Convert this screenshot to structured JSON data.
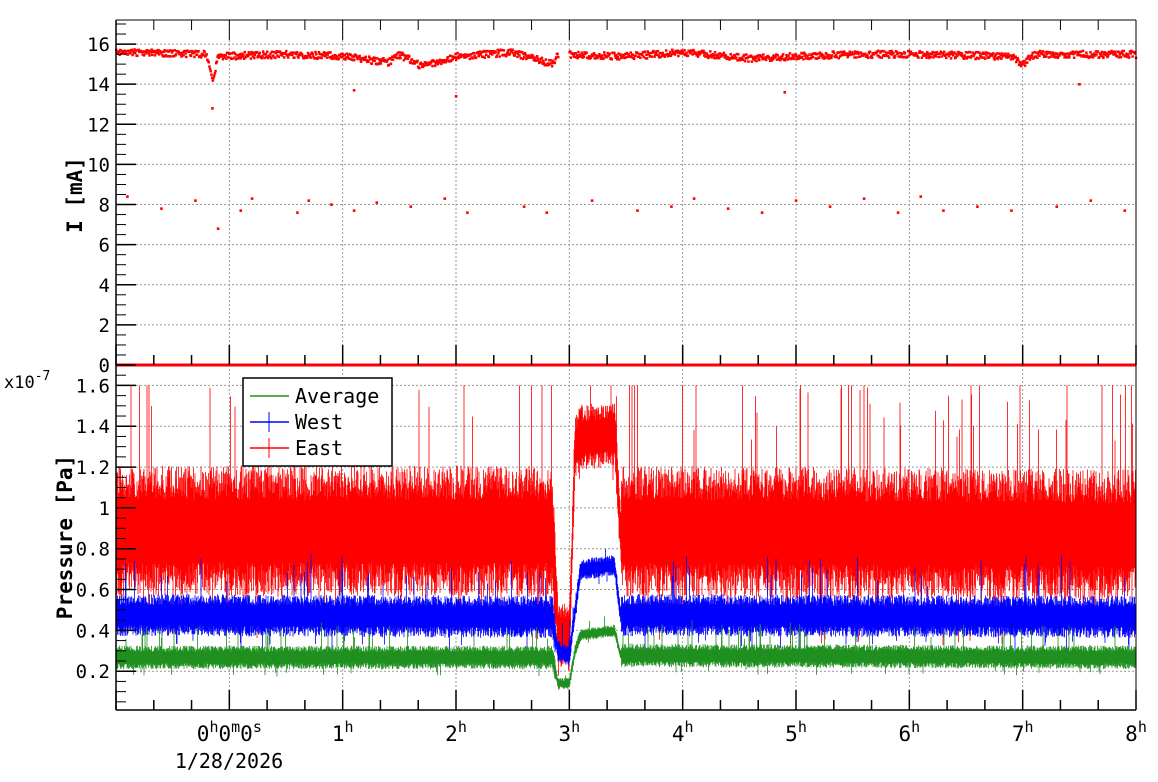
{
  "chart_data": [
    {
      "type": "scatter",
      "ylabel": "I [mA]",
      "ylim": [
        0,
        17.2
      ],
      "xlim_hours": [
        -1,
        8
      ],
      "yticks": [
        "0",
        "2",
        "4",
        "6",
        "8",
        "10",
        "12",
        "14",
        "16"
      ],
      "grid": true,
      "color": "#ff0000",
      "series": [
        {
          "points_main_band": [
            [
              -1,
              15.6
            ],
            [
              -0.2,
              15.5
            ],
            [
              -0.15,
              14.2
            ],
            [
              -0.1,
              15.4
            ],
            [
              0.5,
              15.5
            ],
            [
              1.0,
              15.4
            ],
            [
              1.4,
              15.1
            ],
            [
              1.5,
              15.5
            ],
            [
              1.7,
              14.9
            ],
            [
              2.0,
              15.4
            ],
            [
              2.5,
              15.6
            ],
            [
              2.85,
              15.0
            ],
            [
              2.9,
              15.5
            ]
          ],
          "points_main_band_after_gap": [
            [
              3.0,
              15.5
            ],
            [
              3.5,
              15.4
            ],
            [
              4.0,
              15.6
            ],
            [
              4.6,
              15.3
            ],
            [
              5.0,
              15.4
            ],
            [
              5.5,
              15.5
            ],
            [
              6.0,
              15.5
            ],
            [
              6.9,
              15.4
            ],
            [
              7.0,
              15.0
            ],
            [
              7.1,
              15.5
            ],
            [
              8,
              15.5
            ]
          ],
          "outliers": [
            [
              -0.9,
              8.4
            ],
            [
              -0.6,
              7.8
            ],
            [
              -0.3,
              8.2
            ],
            [
              -0.1,
              6.8
            ],
            [
              0.1,
              7.7
            ],
            [
              0.2,
              8.3
            ],
            [
              0.6,
              7.6
            ],
            [
              0.7,
              8.2
            ],
            [
              0.9,
              8.0
            ],
            [
              1.1,
              7.7
            ],
            [
              1.3,
              8.1
            ],
            [
              1.6,
              7.9
            ],
            [
              1.9,
              8.3
            ],
            [
              2.1,
              7.6
            ],
            [
              2.6,
              7.9
            ],
            [
              2.8,
              7.6
            ],
            [
              3.2,
              8.2
            ],
            [
              3.6,
              7.7
            ],
            [
              3.9,
              7.9
            ],
            [
              4.1,
              8.3
            ],
            [
              4.4,
              7.8
            ],
            [
              4.7,
              7.6
            ],
            [
              5.0,
              8.2
            ],
            [
              5.3,
              7.9
            ],
            [
              5.6,
              8.3
            ],
            [
              5.9,
              7.6
            ],
            [
              6.1,
              8.4
            ],
            [
              6.3,
              7.7
            ],
            [
              6.6,
              7.9
            ],
            [
              6.9,
              7.7
            ],
            [
              7.3,
              7.9
            ],
            [
              7.6,
              8.2
            ],
            [
              7.9,
              7.7
            ],
            [
              -0.15,
              12.8
            ],
            [
              1.1,
              13.7
            ],
            [
              2.0,
              13.4
            ],
            [
              4.9,
              13.6
            ],
            [
              7.5,
              14.0
            ]
          ],
          "zero_line": 0
        }
      ]
    },
    {
      "type": "line",
      "ylabel": "Pressure [Pa]",
      "y_multiplier": "x10-7",
      "ylim": [
        0.01,
        1.7
      ],
      "xlim_hours": [
        -1,
        8
      ],
      "yticks": [
        "0.2",
        "0.4",
        "0.6",
        "0.8",
        "1",
        "1.2",
        "1.4",
        "1.6"
      ],
      "grid": true,
      "legend_placement": "top-left",
      "series": [
        {
          "name": "Average",
          "color": "#1f8f1f",
          "values": [
            [
              -1,
              0.27
            ],
            [
              2.85,
              0.27
            ],
            [
              2.9,
              0.14
            ],
            [
              3.0,
              0.14
            ],
            [
              3.05,
              0.3
            ],
            [
              3.1,
              0.38
            ],
            [
              3.4,
              0.4
            ],
            [
              3.45,
              0.28
            ],
            [
              8,
              0.27
            ]
          ]
        },
        {
          "name": "West",
          "color": "#0000ff",
          "values": [
            [
              -1,
              0.48
            ],
            [
              2.85,
              0.47
            ],
            [
              2.9,
              0.3
            ],
            [
              3.0,
              0.28
            ],
            [
              3.05,
              0.5
            ],
            [
              3.1,
              0.7
            ],
            [
              3.4,
              0.72
            ],
            [
              3.45,
              0.48
            ],
            [
              8,
              0.47
            ]
          ]
        },
        {
          "name": "East",
          "color": "#ff0000",
          "values": [
            [
              -1,
              0.9
            ],
            [
              2.85,
              0.9
            ],
            [
              2.9,
              0.4
            ],
            [
              3.0,
              0.36
            ],
            [
              3.05,
              1.3
            ],
            [
              3.1,
              1.35
            ],
            [
              3.4,
              1.37
            ],
            [
              3.45,
              0.9
            ],
            [
              8,
              0.88
            ]
          ]
        }
      ]
    }
  ],
  "x_axis": {
    "ticks": [
      {
        "hour": 0,
        "main": "0",
        "sup": "h",
        "main2": "0",
        "sup2": "m",
        "main3": "0",
        "sup3": "s"
      },
      {
        "hour": 1,
        "main": "1",
        "sup": "h"
      },
      {
        "hour": 2,
        "main": "2",
        "sup": "h"
      },
      {
        "hour": 3,
        "main": "3",
        "sup": "h"
      },
      {
        "hour": 4,
        "main": "4",
        "sup": "h"
      },
      {
        "hour": 5,
        "main": "5",
        "sup": "h"
      },
      {
        "hour": 6,
        "main": "6",
        "sup": "h"
      },
      {
        "hour": 7,
        "main": "7",
        "sup": "h"
      },
      {
        "hour": 8,
        "main": "8",
        "sup": "h"
      }
    ],
    "date": "1/28/2026"
  }
}
